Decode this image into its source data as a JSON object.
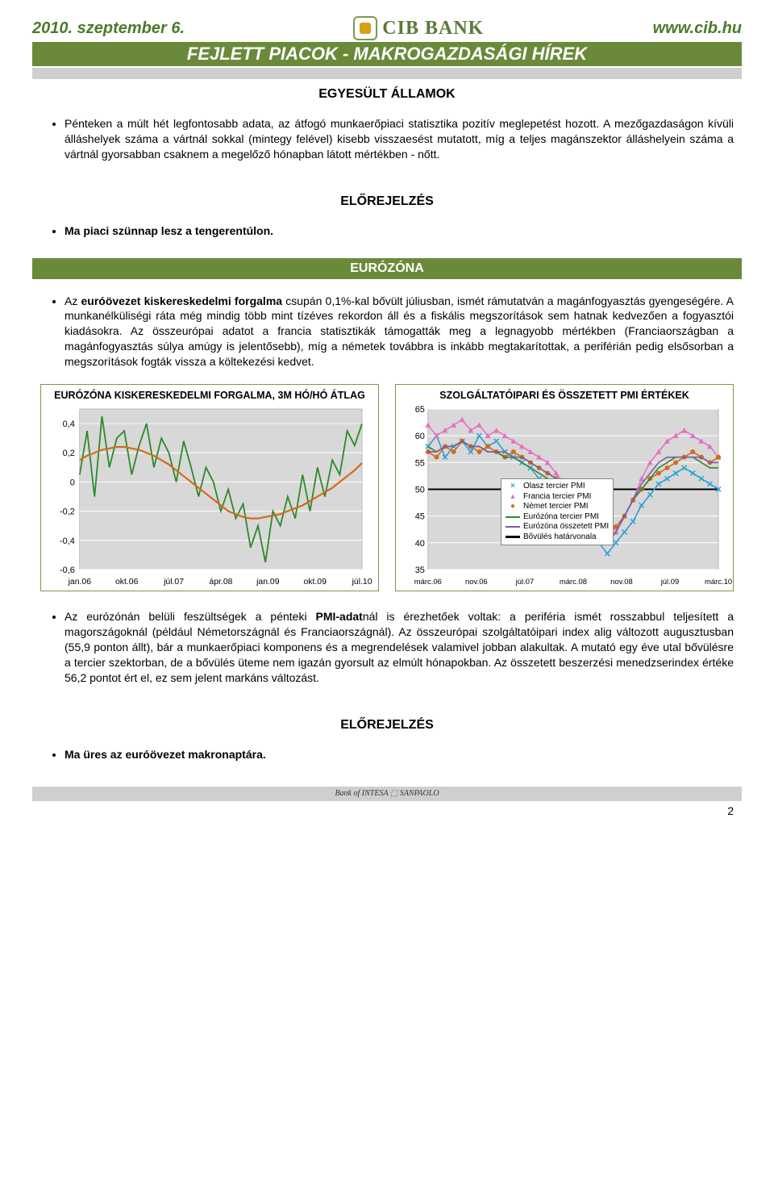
{
  "header": {
    "date": "2010. szeptember 6.",
    "url": "www.cib.hu",
    "logo_text": "CIB BANK",
    "main_title": "FEJLETT PIACOK - MAKROGAZDASÁGI HÍREK"
  },
  "section1": {
    "label": "EGYESÜLT ÁLLAMOK",
    "bullet1": "Pénteken a múlt hét legfontosabb adata, az átfogó munkaerőpiaci statisztika pozitív meglepetést hozott. A mezőgazdaságon kívüli álláshelyek száma a vártnál sokkal (mintegy felével) kisebb visszaesést mutatott, míg a teljes magánszektor álláshelyein száma a vártnál gyorsabban csaknem a megelőző hónapban látott mértékben - nőtt.",
    "forecast_label": "ELŐREJELZÉS",
    "bullet2": "Ma piaci szünnap lesz a tengerentúlon."
  },
  "eurozone": {
    "bar_label": "EURÓZÓNA",
    "bullet1_pre": "Az ",
    "bullet1_bold": "euróövezet kiskereskedelmi forgalma",
    "bullet1_post": " csupán 0,1%-kal bővült júliusban, ismét rámutatván a magánfogyasztás gyengeségére. A munkanélküliségi ráta még mindig több mint tízéves rekordon áll és a fiskális megszorítások sem hatnak kedvezően a fogyasztói kiadásokra. Az összeurópai adatot a francia statisztikák támogatták meg a legnagyobb mértékben (Franciaországban a magánfogyasztás súlya amúgy is jelentősebb), míg a németek továbbra is inkább megtakarítottak, a periférián pedig elsősorban a megszorítások fogták vissza a költekezési kedvet."
  },
  "chart_left": {
    "title": "EURÓZÓNA KISKERESKEDELMI FORGALMA, 3M HÓ/HÓ ÁTLAG",
    "y_ticks": [
      "0,4",
      "0,2",
      "0",
      "-0,2",
      "-0,4",
      "-0,6"
    ],
    "x_ticks": [
      "jan.06",
      "okt.06",
      "júl.07",
      "ápr.08",
      "jan.09",
      "okt.09",
      "júl.10"
    ],
    "ylim": [
      -0.6,
      0.5
    ],
    "series_green": {
      "color": "#2a8a2a",
      "values": [
        0.05,
        0.35,
        -0.1,
        0.45,
        0.1,
        0.3,
        0.35,
        0.05,
        0.25,
        0.4,
        0.1,
        0.3,
        0.2,
        0.0,
        0.28,
        0.1,
        -0.1,
        0.1,
        0.0,
        -0.2,
        -0.05,
        -0.25,
        -0.15,
        -0.45,
        -0.3,
        -0.55,
        -0.2,
        -0.3,
        -0.1,
        -0.25,
        0.05,
        -0.2,
        0.1,
        -0.1,
        0.15,
        0.05,
        0.35,
        0.25,
        0.4
      ]
    },
    "series_orange": {
      "color": "#d46a1a",
      "values": [
        0.15,
        0.18,
        0.2,
        0.22,
        0.23,
        0.24,
        0.24,
        0.23,
        0.22,
        0.2,
        0.18,
        0.15,
        0.12,
        0.08,
        0.04,
        0.0,
        -0.04,
        -0.08,
        -0.12,
        -0.16,
        -0.2,
        -0.22,
        -0.24,
        -0.25,
        -0.25,
        -0.24,
        -0.23,
        -0.22,
        -0.2,
        -0.18,
        -0.16,
        -0.13,
        -0.1,
        -0.07,
        -0.04,
        0.0,
        0.04,
        0.08,
        0.13
      ]
    }
  },
  "chart_right": {
    "title": "SZOLGÁLTATÓIPARI ÉS ÖSSZETETT PMI ÉRTÉKEK",
    "y_ticks": [
      "65",
      "60",
      "55",
      "50",
      "45",
      "40",
      "35"
    ],
    "x_ticks": [
      "márc.06",
      "nov.06",
      "júl.07",
      "márc.08",
      "nov.08",
      "júl.09",
      "márc.10"
    ],
    "ylim": [
      35,
      65
    ],
    "legend": [
      {
        "label": "Olasz tercier PMI",
        "color": "#2aa0d8",
        "marker": "x"
      },
      {
        "label": "Francia tercier PMI",
        "color": "#e670c0",
        "marker": "triangle"
      },
      {
        "label": "Német tercier PMI",
        "color": "#d46a1a",
        "marker": "circle"
      },
      {
        "label": "Eurózóna tercier PMI",
        "color": "#2a8a2a",
        "marker": "none"
      },
      {
        "label": "Eurózóna összetett PMI",
        "color": "#7a5aa8",
        "marker": "none"
      },
      {
        "label": "Bővülés határvonala",
        "color": "#000000",
        "marker": "none"
      }
    ],
    "series": {
      "italian": [
        58,
        60,
        56,
        58,
        59,
        57,
        60,
        58,
        59,
        57,
        56,
        55,
        54,
        52,
        51,
        49,
        48,
        47,
        45,
        42,
        40,
        38,
        40,
        42,
        44,
        47,
        49,
        51,
        52,
        53,
        54,
        53,
        52,
        51,
        50
      ],
      "french": [
        62,
        60,
        61,
        62,
        63,
        61,
        62,
        60,
        61,
        60,
        59,
        58,
        57,
        56,
        55,
        53,
        51,
        49,
        47,
        44,
        41,
        40,
        42,
        45,
        48,
        52,
        55,
        57,
        59,
        60,
        61,
        60,
        59,
        58,
        56
      ],
      "german": [
        57,
        56,
        58,
        57,
        59,
        58,
        57,
        58,
        57,
        56,
        57,
        56,
        55,
        54,
        53,
        52,
        51,
        50,
        48,
        45,
        42,
        41,
        43,
        45,
        48,
        50,
        52,
        53,
        54,
        55,
        56,
        57,
        56,
        55,
        56
      ],
      "ez_tert": [
        58,
        57,
        58,
        58,
        59,
        58,
        58,
        57,
        57,
        56,
        56,
        55,
        54,
        53,
        52,
        51,
        50,
        49,
        47,
        44,
        41,
        40,
        42,
        45,
        48,
        50,
        52,
        54,
        55,
        56,
        56,
        56,
        55,
        54,
        54
      ],
      "ez_comp": [
        57,
        57,
        58,
        58,
        59,
        58,
        58,
        57,
        57,
        57,
        56,
        56,
        55,
        54,
        53,
        52,
        51,
        49,
        47,
        44,
        41,
        40,
        42,
        45,
        48,
        51,
        53,
        55,
        56,
        56,
        56,
        56,
        56,
        55,
        55
      ]
    }
  },
  "post_charts": {
    "bullet_pre": "Az eurózónán belüli feszültségek a pénteki ",
    "bullet_bold": "PMI-adat",
    "bullet_post": "nál is érezhetőek voltak: a periféria ismét rosszabbul teljesített a magországoknál (például Németországnál és Franciaországnál). Az összeurópai szolgáltatóipari index alig változott augusztusban (55,9 ponton állt), bár a munkaerőpiaci komponens és a megrendelések valamivel jobban alakultak. A mutató egy éve utal bővülésre a tercier szektorban, de a bővülés üteme nem igazán gyorsult az elmúlt hónapokban. Az összetett beszerzési menedzserindex értéke 56,2 pontot ért el, ez sem jelent markáns változást.",
    "forecast_label": "ELŐREJELZÉS",
    "bullet2": "Ma üres az euróövezet makronaptára."
  },
  "footer": {
    "bank_of": "Bank of INTESA ⬚ SANPAOLO",
    "page": "2"
  }
}
